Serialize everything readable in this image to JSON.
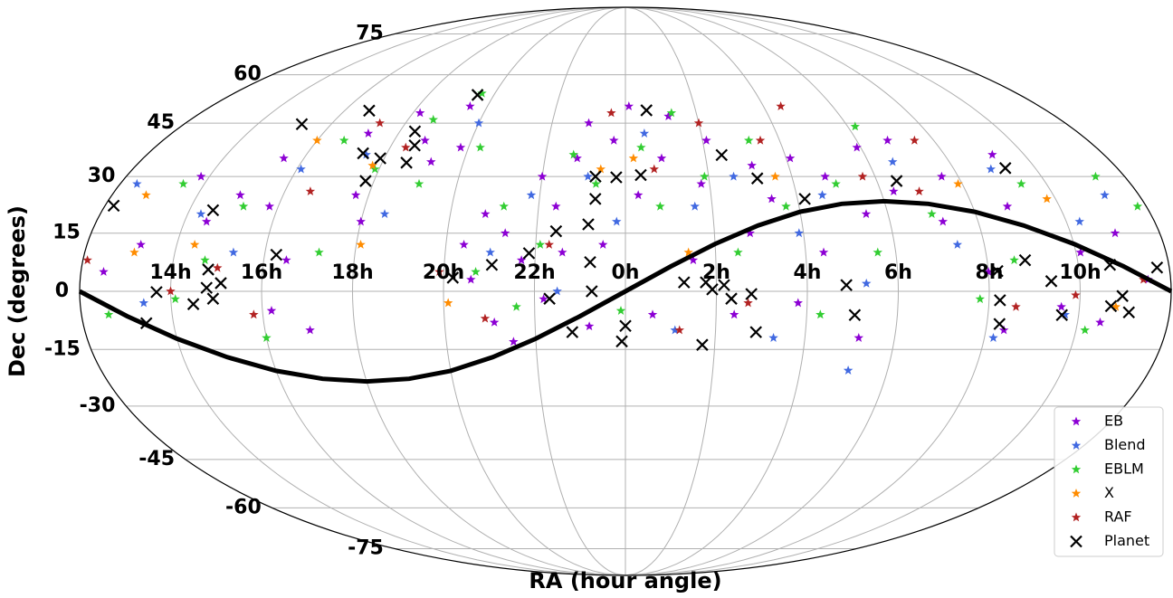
{
  "chart_data": {
    "type": "scatter",
    "projection": "mollweide",
    "xlabel": "RA (hour angle)",
    "ylabel": "Dec (degrees)",
    "xlim": [
      -12,
      12
    ],
    "ylim": [
      -90,
      90
    ],
    "xticks": [
      {
        "value": -10,
        "label": "14h"
      },
      {
        "value": -8,
        "label": "16h"
      },
      {
        "value": -6,
        "label": "18h"
      },
      {
        "value": -4,
        "label": "20h"
      },
      {
        "value": -2,
        "label": "22h"
      },
      {
        "value": 0,
        "label": "0h"
      },
      {
        "value": 2,
        "label": "2h"
      },
      {
        "value": 4,
        "label": "4h"
      },
      {
        "value": 6,
        "label": "6h"
      },
      {
        "value": 8,
        "label": "8h"
      },
      {
        "value": 10,
        "label": "10h"
      }
    ],
    "yticks": [
      -75,
      -60,
      -45,
      -30,
      -15,
      0,
      15,
      30,
      45,
      60,
      75
    ],
    "grid": true,
    "legend": "lower right",
    "series": [
      {
        "name": "EB",
        "color": "#8c00d4",
        "marker": "star",
        "x": [
          -11.5,
          -10.8,
          -10.2,
          -9.5,
          -9,
          -8.5,
          -8.2,
          -7.8,
          -7.5,
          -7,
          -6.8,
          -6.3,
          -6,
          -5.8,
          -5.2,
          -4.8,
          -4.5,
          -4.2,
          -3.6,
          -3.4,
          -3.2,
          -2.9,
          -2.7,
          -2.5,
          -2.3,
          -2,
          -1.8,
          -1.6,
          -1.4,
          -1.2,
          -1,
          -0.8,
          -0.5,
          -0.3,
          0.1,
          0.3,
          0.6,
          0.9,
          1.2,
          1.5,
          1.8,
          2.1,
          2.4,
          2.8,
          3.1,
          3.4,
          3.8,
          4.1,
          4.4,
          4.8,
          5.2,
          5.5,
          5.9,
          6.3,
          6.8,
          7.2,
          7.6,
          8,
          8.4,
          8.8,
          9.2,
          9.6,
          10.1,
          10.5,
          11,
          11.5
        ],
        "y": [
          5,
          12,
          30,
          18,
          25,
          35,
          22,
          -5,
          8,
          -10,
          42,
          25,
          18,
          48,
          40,
          34,
          50,
          38,
          12,
          3,
          20,
          -8,
          15,
          -13,
          8,
          30,
          -2,
          22,
          10,
          35,
          45,
          -9,
          12,
          40,
          50,
          25,
          -6,
          35,
          47,
          8,
          28,
          40,
          -6,
          15,
          33,
          24,
          -3,
          35,
          10,
          30,
          -12,
          20,
          38,
          26,
          40,
          18,
          30,
          5,
          -10,
          22,
          36,
          -4,
          10,
          -8,
          15,
          3
        ]
      },
      {
        "name": "Blend",
        "color": "#4169e1",
        "marker": "star",
        "x": [
          -11.6,
          -10.6,
          -9.7,
          -8.7,
          -7.9,
          -6.5,
          -5.5,
          -4,
          -3,
          -2.2,
          -1.5,
          -0.9,
          -0.2,
          0.5,
          1.1,
          1.6,
          2.6,
          3.3,
          3.9,
          4.6,
          5.3,
          5.1,
          6.6,
          7.4,
          8.2,
          8.9,
          9.7,
          10.3,
          11.2
        ],
        "y": [
          28,
          -3,
          20,
          10,
          32,
          36,
          20,
          45,
          10,
          25,
          0,
          30,
          18,
          42,
          -10,
          22,
          30,
          -12,
          15,
          25,
          2,
          -20.5,
          34,
          12,
          -12,
          32,
          -6,
          18,
          25
        ]
      },
      {
        "name": "EBLM",
        "color": "#32cd32",
        "marker": "star",
        "x": [
          -11.4,
          -10.5,
          -9.9,
          -9.3,
          -8.8,
          -8,
          -7.3,
          -6.8,
          -6.1,
          -5.3,
          -4.9,
          -4.4,
          -3.7,
          -3.3,
          -2.8,
          -2.4,
          -1.9,
          -1.3,
          -0.7,
          -0.1,
          0.4,
          0.8,
          1.3,
          1.9,
          2.5,
          3.2,
          3.7,
          4.3,
          5,
          5.6,
          6.2,
          7,
          7.8,
          8.6,
          9.4,
          10.2,
          11.3,
          11.8
        ],
        "y": [
          -6,
          28,
          -2,
          8,
          22,
          -12,
          40,
          10,
          32,
          46,
          28,
          54,
          38,
          5,
          22,
          -4,
          12,
          36,
          28,
          -5,
          38,
          22,
          48,
          30,
          10,
          40,
          22,
          -6,
          28,
          10,
          44,
          20,
          -2,
          8,
          28,
          -10,
          30,
          22
        ]
      },
      {
        "name": "X",
        "color": "#ff8c00",
        "marker": "star",
        "x": [
          -11.2,
          -10.9,
          -9.6,
          -8,
          -6.2,
          -5.9,
          -3.9,
          -0.6,
          0.2,
          1.4,
          3.6,
          7.9,
          9.8,
          10.8
        ],
        "y": [
          25,
          10,
          12,
          40,
          33,
          12,
          -3,
          32,
          35,
          10,
          30,
          28,
          24,
          -4
        ]
      },
      {
        "name": "RAF",
        "color": "#b22222",
        "marker": "star",
        "x": [
          -11.9,
          -10,
          -9,
          -8.2,
          -7.4,
          -6.7,
          -5.6,
          -4.1,
          -3.1,
          -1.7,
          -0.4,
          0.7,
          1.2,
          2,
          2.7,
          3.5,
          4.5,
          5.7,
          6.9,
          7.5,
          8.6,
          9.9,
          11.4
        ],
        "y": [
          8,
          0,
          6,
          -6,
          26,
          45,
          38,
          5,
          -7,
          12,
          48,
          32,
          -10,
          45,
          -3,
          40,
          50,
          30,
          26,
          40,
          -4,
          -1,
          3
        ]
      },
      {
        "name": "Planet",
        "color": "#000000",
        "marker": "x",
        "x": [
          -11.8,
          -10.31,
          -10.6,
          -9.51,
          -9.2,
          -9.07,
          -9.21,
          -9.46,
          -8.9,
          -7.74,
          -8.8,
          -7.3,
          -6.6,
          -6.1,
          -6.2,
          -5.4,
          -5.6,
          -5.4,
          -3.8,
          -4.5,
          -2.95,
          -2.14,
          -1.67,
          -1.56,
          -1.18,
          -0.78,
          -0.84,
          -0.7,
          -0.72,
          -0.22,
          0.37,
          0.6,
          -0.74,
          0,
          -0.08,
          1.29,
          1.77,
          1.91,
          2.17,
          2.33,
          2.41,
          1.72,
          2.77,
          2.9,
          3.16,
          4.17,
          4.86,
          5.06,
          6.47,
          8.2,
          8.24,
          8.28,
          9.27,
          8.84,
          9.37,
          9.63,
          10.7,
          10.69,
          10.93,
          11.1,
          11.73
        ],
        "y": [
          22.2,
          -0.2,
          -8.2,
          -3.3,
          5.6,
          -1.9,
          0.9,
          21,
          2.1,
          9.4,
          44.7,
          48.7,
          36.4,
          35,
          28.8,
          33.8,
          42.6,
          38.6,
          3.5,
          53.5,
          6.8,
          9.8,
          -1.9,
          15.5,
          -10.5,
          7.5,
          17.3,
          24,
          30,
          29.8,
          30.4,
          48.8,
          0,
          -8.9,
          -12.9,
          2.3,
          2.3,
          0.5,
          1.6,
          -1.9,
          35.9,
          -13.8,
          -0.7,
          -10.5,
          29.5,
          24,
          1.6,
          -6.1,
          28.8,
          5.2,
          -2.3,
          -8.4,
          32.3,
          8,
          2.6,
          -6.1,
          6.8,
          -3.8,
          -1.2,
          -5.4,
          6.1
        ]
      }
    ],
    "ecliptic": {
      "color": "#000000",
      "x": [
        -12,
        -11,
        -10,
        -9,
        -8,
        -7,
        -6,
        -5,
        -4,
        -3,
        -2,
        -1,
        0,
        1,
        2,
        3,
        4,
        5,
        6,
        7,
        8,
        9,
        10,
        11,
        12
      ],
      "y": [
        0,
        -6.4,
        -12.2,
        -17,
        -20.6,
        -22.7,
        -23.4,
        -22.7,
        -20.6,
        -17,
        -12.2,
        -6.4,
        0,
        6.4,
        12.2,
        17,
        20.6,
        22.7,
        23.4,
        22.7,
        20.6,
        17,
        12.2,
        6.4,
        0
      ]
    }
  }
}
